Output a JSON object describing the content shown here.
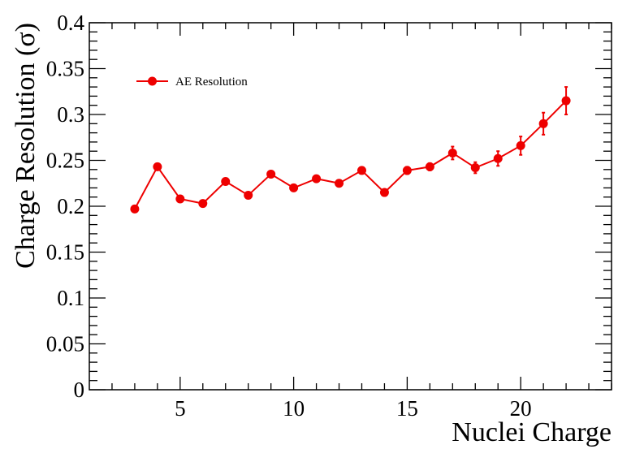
{
  "chart_data": {
    "type": "line",
    "title": "",
    "xlabel": "Nuclei Charge",
    "ylabel": "Charge Resolution (σ)",
    "xlim": [
      1,
      24
    ],
    "ylim": [
      0,
      0.4
    ],
    "x_ticks": [
      5,
      10,
      15,
      20
    ],
    "x_tick_labels": [
      "5",
      "10",
      "15",
      "20"
    ],
    "y_ticks": [
      0,
      0.05,
      0.1,
      0.15,
      0.2,
      0.25,
      0.3,
      0.35,
      0.4
    ],
    "y_tick_labels": [
      "0",
      "0.05",
      "0.1",
      "0.15",
      "0.2",
      "0.25",
      "0.3",
      "0.35",
      "0.4"
    ],
    "grid": false,
    "legend_position": "top-left",
    "series_color": "#ee0000",
    "series": [
      {
        "name": "AE Resolution",
        "x": [
          3,
          4,
          5,
          6,
          7,
          8,
          9,
          10,
          11,
          12,
          13,
          14,
          15,
          16,
          17,
          18,
          19,
          20,
          21,
          22
        ],
        "values": [
          0.197,
          0.243,
          0.208,
          0.203,
          0.227,
          0.212,
          0.235,
          0.22,
          0.23,
          0.225,
          0.239,
          0.215,
          0.239,
          0.243,
          0.258,
          0.242,
          0.252,
          0.266,
          0.29,
          0.315
        ],
        "errors": [
          0.003,
          0.003,
          0.003,
          0.003,
          0.003,
          0.003,
          0.003,
          0.003,
          0.003,
          0.003,
          0.003,
          0.003,
          0.004,
          0.004,
          0.007,
          0.006,
          0.008,
          0.01,
          0.012,
          0.015
        ]
      }
    ]
  }
}
